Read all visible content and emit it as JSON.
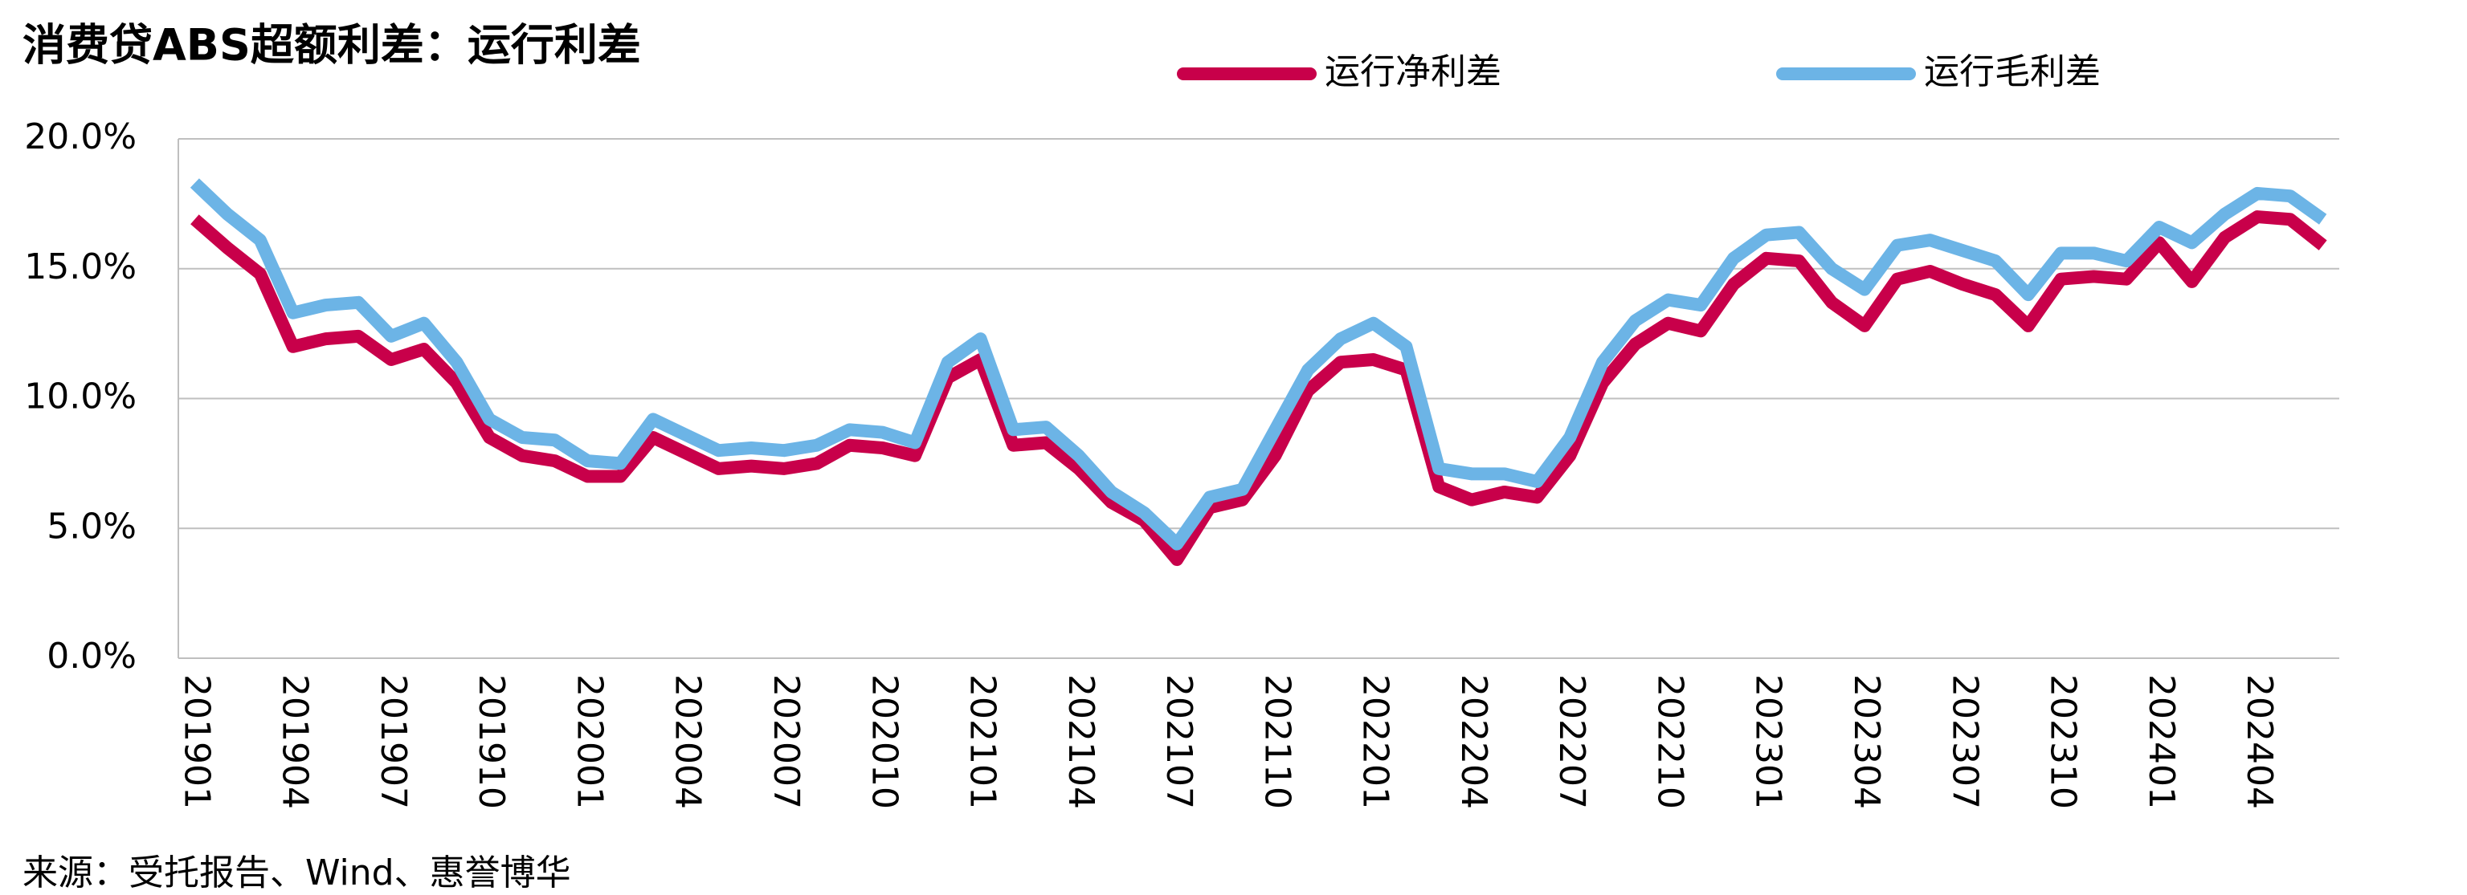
{
  "chart_data": {
    "type": "line",
    "title": "消费贷ABS超额利差：运行利差",
    "source": "来源：受托报告、Wind、惠誉博华",
    "categories": [
      "201901",
      null,
      null,
      "201904",
      null,
      null,
      "201907",
      null,
      null,
      "201910",
      null,
      null,
      "202001",
      null,
      null,
      "202004",
      null,
      null,
      "202007",
      null,
      null,
      "202010",
      null,
      null,
      "202101",
      null,
      null,
      "202104",
      null,
      null,
      "202107",
      null,
      null,
      "202110",
      null,
      null,
      "202201",
      null,
      null,
      "202204",
      null,
      null,
      "202207",
      null,
      null,
      "202210",
      null,
      null,
      "202301",
      null,
      null,
      "202304",
      null,
      null,
      "202307",
      null,
      null,
      "202310",
      null,
      null,
      "202401",
      null,
      null,
      "202404",
      null,
      null
    ],
    "series": [
      {
        "name": "运行净利差",
        "color": "#c8004a",
        "values": [
          16.9,
          15.8,
          14.8,
          12.0,
          12.3,
          12.4,
          11.5,
          11.9,
          10.6,
          8.5,
          7.8,
          7.6,
          7.0,
          7.0,
          8.5,
          7.9,
          7.3,
          7.4,
          7.3,
          7.5,
          8.2,
          8.1,
          7.8,
          10.8,
          11.5,
          8.2,
          8.3,
          7.3,
          6.0,
          5.3,
          3.8,
          5.8,
          6.1,
          7.8,
          10.3,
          11.4,
          11.5,
          11.1,
          6.6,
          6.1,
          6.4,
          6.2,
          7.8,
          10.6,
          12.1,
          12.9,
          12.6,
          14.4,
          15.4,
          15.3,
          13.7,
          12.8,
          14.6,
          14.9,
          14.4,
          14.0,
          12.8,
          14.6,
          14.7,
          14.6,
          16.0,
          14.5,
          16.2,
          17.0,
          16.9,
          15.9
        ]
      },
      {
        "name": "运行毛利差",
        "color": "#6cb4e6",
        "values": [
          18.3,
          17.1,
          16.1,
          13.3,
          13.6,
          13.7,
          12.4,
          12.9,
          11.4,
          9.2,
          8.5,
          8.4,
          7.6,
          7.5,
          9.2,
          8.6,
          8.0,
          8.1,
          8.0,
          8.2,
          8.8,
          8.7,
          8.3,
          11.4,
          12.3,
          8.8,
          8.9,
          7.8,
          6.4,
          5.6,
          4.4,
          6.2,
          6.5,
          8.8,
          11.1,
          12.3,
          12.9,
          12.0,
          7.3,
          7.1,
          7.1,
          6.8,
          8.5,
          11.4,
          13.0,
          13.8,
          13.6,
          15.4,
          16.3,
          16.4,
          15.0,
          14.2,
          15.9,
          16.1,
          15.7,
          15.3,
          14.0,
          15.6,
          15.6,
          15.3,
          16.6,
          16.0,
          17.1,
          17.9,
          17.8,
          16.9
        ]
      }
    ],
    "ylim": [
      0,
      20
    ],
    "yticks": [
      {
        "value": 0,
        "label": "0.0%"
      },
      {
        "value": 5,
        "label": "5.0%"
      },
      {
        "value": 10,
        "label": "10.0%"
      },
      {
        "value": 15,
        "label": "15.0%"
      },
      {
        "value": 20,
        "label": "20.0%"
      }
    ],
    "grid": true,
    "legend": "top"
  }
}
